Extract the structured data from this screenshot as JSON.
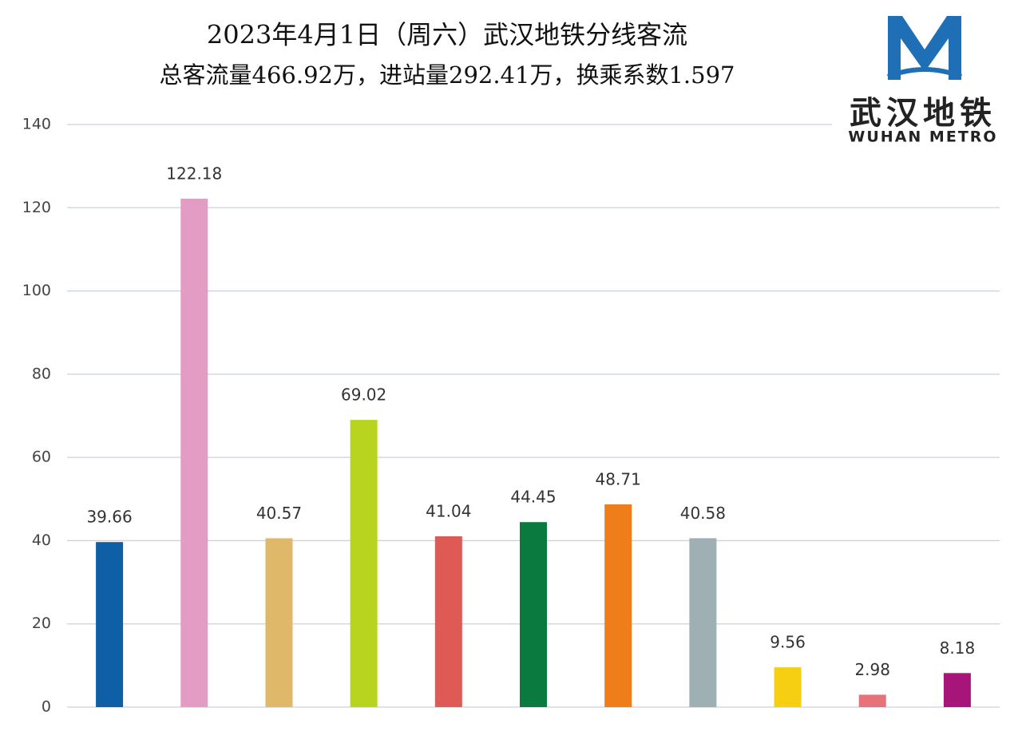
{
  "chart_data": {
    "type": "bar",
    "title": "2023年4月1日（周六）武汉地铁分线客流",
    "subtitle": "总客流量466.92万，进站量292.41万，换乘系数1.597",
    "categories": [
      null,
      null,
      null,
      null,
      null,
      null,
      null,
      null,
      null,
      null,
      null
    ],
    "values": [
      39.66,
      122.18,
      40.57,
      69.02,
      41.04,
      44.45,
      48.71,
      40.58,
      9.56,
      2.98,
      8.18
    ],
    "colors": [
      "#0e5fa6",
      "#e39cc4",
      "#e0b86a",
      "#b9d41e",
      "#e05a55",
      "#0a7a3e",
      "#ef7d1a",
      "#9fb0b5",
      "#f7cf12",
      "#e8727a",
      "#a8157a"
    ],
    "ylim": [
      0,
      140
    ],
    "yticks": [
      0,
      20,
      40,
      60,
      80,
      100,
      120,
      140
    ],
    "grid": true
  },
  "logo": {
    "name_cn": "武汉地铁",
    "name_en": "WUHAN METRO"
  }
}
